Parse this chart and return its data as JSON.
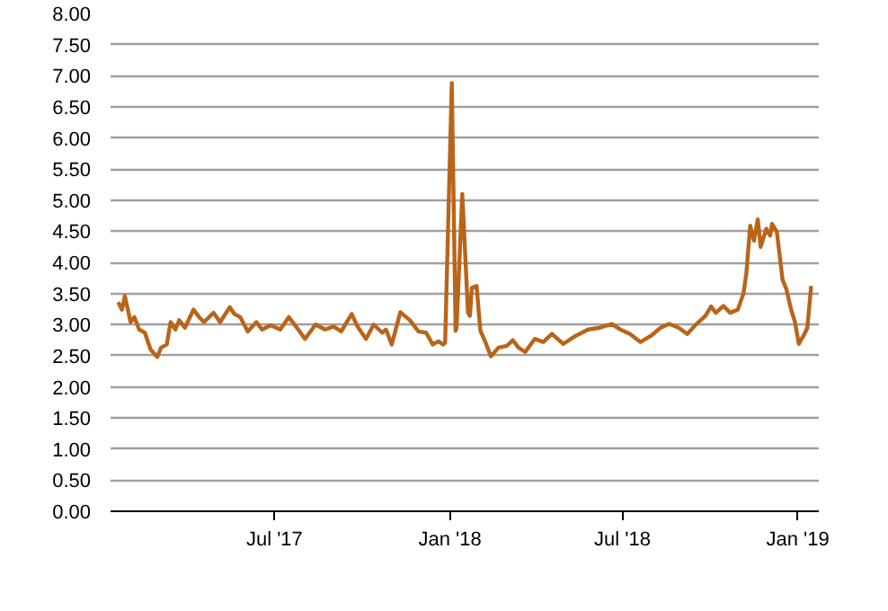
{
  "chart_data": {
    "type": "line",
    "xlim": [
      "2017-01-10",
      "2019-01-23"
    ],
    "ylim": [
      0,
      8
    ],
    "xticks": [
      {
        "value": "2017-07-01",
        "label": "Jul '17"
      },
      {
        "value": "2018-01-01",
        "label": "Jan '18"
      },
      {
        "value": "2018-07-01",
        "label": "Jul '18"
      },
      {
        "value": "2019-01-01",
        "label": "Jan '19"
      }
    ],
    "yticks": [
      {
        "value": 0,
        "label": "0.00"
      },
      {
        "value": 0.5,
        "label": "0.50"
      },
      {
        "value": 1,
        "label": "1.00"
      },
      {
        "value": 1.5,
        "label": "1.50"
      },
      {
        "value": 2,
        "label": "2.00"
      },
      {
        "value": 2.5,
        "label": "2.50"
      },
      {
        "value": 3,
        "label": "3.00"
      },
      {
        "value": 3.5,
        "label": "3.50"
      },
      {
        "value": 4,
        "label": "4.00"
      },
      {
        "value": 4.5,
        "label": "4.50"
      },
      {
        "value": 5,
        "label": "5.00"
      },
      {
        "value": 5.5,
        "label": "5.50"
      },
      {
        "value": 6,
        "label": "6.00"
      },
      {
        "value": 6.5,
        "label": "6.50"
      },
      {
        "value": 7,
        "label": "7.00"
      },
      {
        "value": 7.5,
        "label": "7.50"
      },
      {
        "value": 8,
        "label": "8.00"
      }
    ],
    "grid": "y",
    "marker": "none",
    "line_style": "solid",
    "series": [
      {
        "color": "#b8651a",
        "x": [
          "2017-01-18",
          "2017-01-22",
          "2017-01-25",
          "2017-01-31",
          "2017-02-04",
          "2017-02-09",
          "2017-02-15",
          "2017-02-21",
          "2017-02-28",
          "2017-03-04",
          "2017-03-10",
          "2017-03-14",
          "2017-03-19",
          "2017-03-23",
          "2017-03-29",
          "2017-04-07",
          "2017-04-13",
          "2017-04-18",
          "2017-04-28",
          "2017-05-05",
          "2017-05-15",
          "2017-05-20",
          "2017-05-26",
          "2017-06-03",
          "2017-06-12",
          "2017-06-18",
          "2017-06-27",
          "2017-07-07",
          "2017-07-16",
          "2017-07-26",
          "2017-08-02",
          "2017-08-13",
          "2017-08-23",
          "2017-09-01",
          "2017-09-09",
          "2017-09-20",
          "2017-09-26",
          "2017-10-05",
          "2017-10-13",
          "2017-10-22",
          "2017-10-26",
          "2017-11-01",
          "2017-11-10",
          "2017-11-20",
          "2017-11-29",
          "2017-12-07",
          "2017-12-14",
          "2017-12-20",
          "2017-12-25",
          "2017-12-27",
          "2018-01-03",
          "2018-01-07",
          "2018-01-08",
          "2018-01-14",
          "2018-01-20",
          "2018-01-22",
          "2018-01-24",
          "2018-01-29",
          "2018-02-02",
          "2018-02-08",
          "2018-02-13",
          "2018-02-21",
          "2018-03-02",
          "2018-03-08",
          "2018-03-14",
          "2018-03-21",
          "2018-03-31",
          "2018-04-09",
          "2018-04-18",
          "2018-04-30",
          "2018-05-13",
          "2018-05-26",
          "2018-06-07",
          "2018-06-20",
          "2018-06-29",
          "2018-07-09",
          "2018-07-20",
          "2018-07-31",
          "2018-08-10",
          "2018-08-19",
          "2018-08-29",
          "2018-09-07",
          "2018-09-16",
          "2018-09-26",
          "2018-10-02",
          "2018-10-07",
          "2018-10-15",
          "2018-10-22",
          "2018-10-30",
          "2018-11-05",
          "2018-11-08",
          "2018-11-12",
          "2018-11-16",
          "2018-11-20",
          "2018-11-23",
          "2018-11-29",
          "2018-12-03",
          "2018-12-05",
          "2018-12-10",
          "2018-12-16",
          "2018-12-20",
          "2018-12-25",
          "2018-12-29",
          "2019-01-02",
          "2019-01-08",
          "2019-01-11",
          "2019-01-15"
        ],
        "values": [
          3.36,
          3.24,
          3.46,
          3.04,
          3.12,
          2.92,
          2.87,
          2.6,
          2.48,
          2.63,
          2.68,
          3.04,
          2.92,
          3.07,
          2.95,
          3.24,
          3.12,
          3.04,
          3.19,
          3.04,
          3.28,
          3.17,
          3.12,
          2.89,
          3.04,
          2.92,
          2.99,
          2.92,
          3.12,
          2.92,
          2.77,
          3.0,
          2.92,
          2.97,
          2.89,
          3.17,
          2.97,
          2.77,
          3.0,
          2.87,
          2.92,
          2.68,
          3.2,
          3.07,
          2.89,
          2.87,
          2.68,
          2.73,
          2.68,
          2.71,
          6.88,
          2.9,
          2.95,
          5.1,
          3.19,
          3.14,
          3.59,
          3.62,
          2.9,
          2.69,
          2.49,
          2.63,
          2.66,
          2.75,
          2.63,
          2.56,
          2.77,
          2.72,
          2.85,
          2.69,
          2.82,
          2.92,
          2.95,
          3.01,
          2.92,
          2.85,
          2.72,
          2.82,
          2.95,
          3.01,
          2.95,
          2.85,
          3.0,
          3.14,
          3.29,
          3.19,
          3.3,
          3.19,
          3.24,
          3.5,
          3.82,
          4.59,
          4.35,
          4.69,
          4.25,
          4.54,
          4.43,
          4.62,
          4.49,
          3.72,
          3.57,
          3.24,
          3.04,
          2.69,
          2.85,
          2.95,
          3.62
        ]
      }
    ]
  }
}
